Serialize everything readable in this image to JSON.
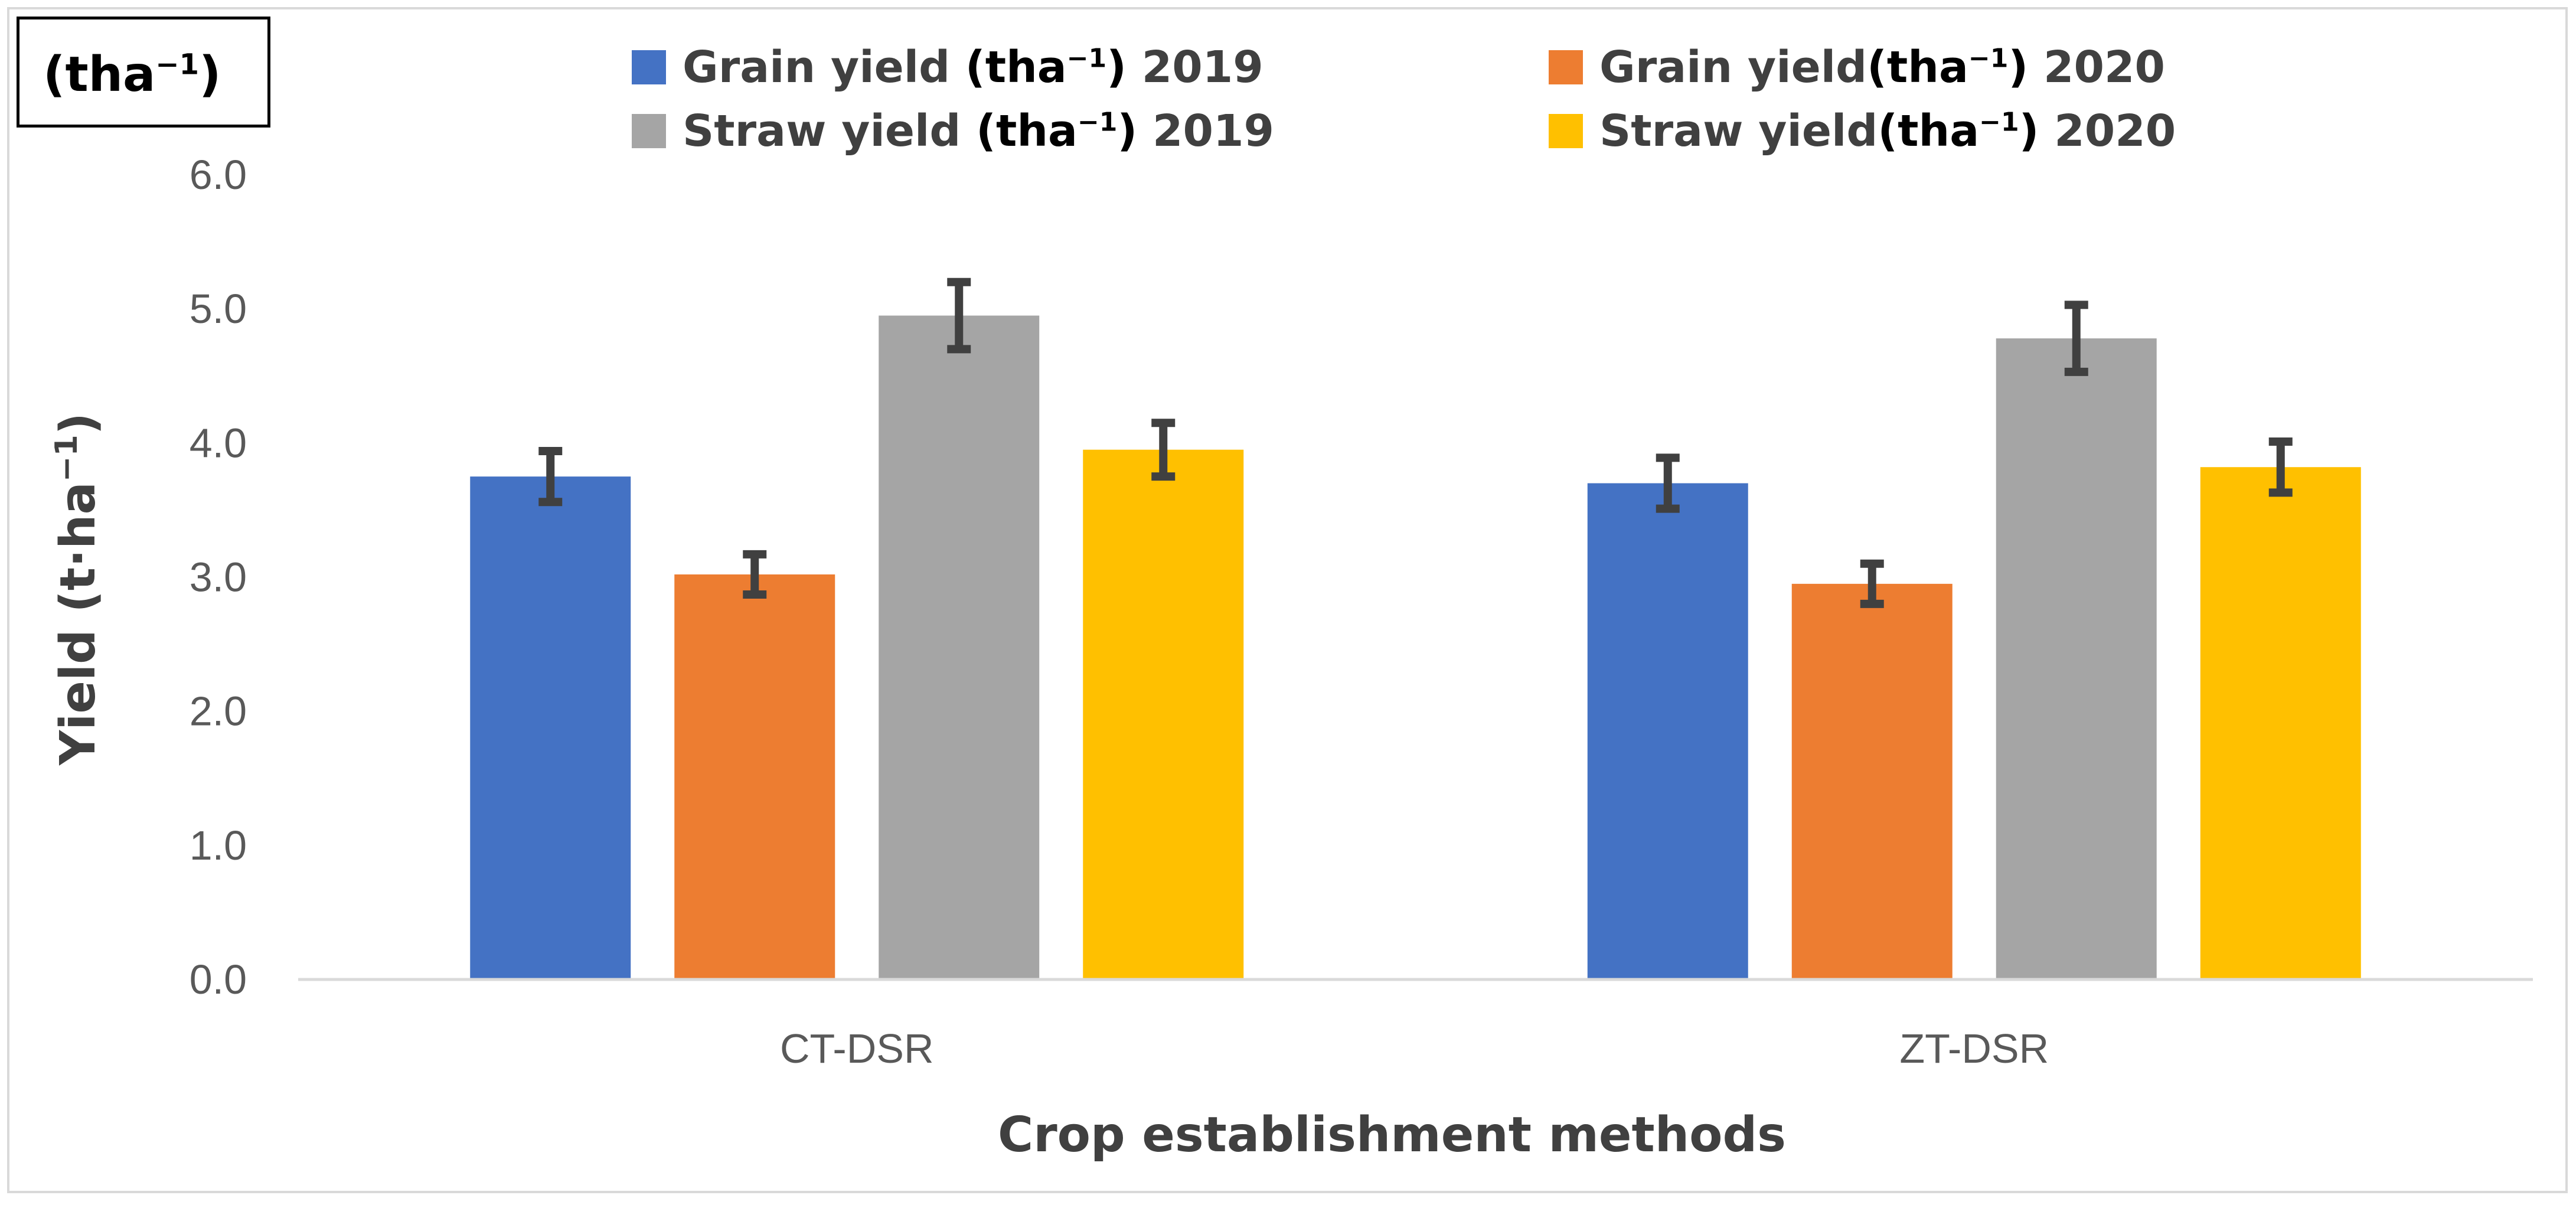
{
  "unit_box": {
    "base": "(tha",
    "exp": "−1",
    "close": ")"
  },
  "legend": [
    {
      "pre": "Grain yield ",
      "unit_base": "(tha",
      "unit_exp": "−1",
      "unit_close": ")",
      "post": " 2019",
      "color": "#4472C4"
    },
    {
      "pre": "Grain yield",
      "unit_base": "(tha",
      "unit_exp": "−1",
      "unit_close": ")",
      "post": "  2020",
      "color": "#ED7D31"
    },
    {
      "pre": "Straw yield ",
      "unit_base": "(tha",
      "unit_exp": "−1",
      "unit_close": ")",
      "post": " 2019",
      "color": "#A5A5A5"
    },
    {
      "pre": "Straw yield",
      "unit_base": "(tha",
      "unit_exp": "−1",
      "unit_close": ")",
      "post": "  2020",
      "color": "#FFC000"
    }
  ],
  "chart_data": {
    "type": "bar",
    "title": "",
    "xlabel": "Crop establishment methods",
    "ylabel_base": "Yield (t·ha",
    "ylabel_exp": "−1",
    "ylabel_close": ")",
    "categories": [
      "CT-DSR",
      "ZT-DSR"
    ],
    "ylim": [
      0,
      6
    ],
    "yticks": [
      "0.0",
      "1.0",
      "2.0",
      "3.0",
      "4.0",
      "5.0",
      "6.0"
    ],
    "grid": false,
    "legend_position": "top",
    "series": [
      {
        "name": "Grain yield (tha−1) 2019",
        "values": [
          3.75,
          3.7
        ],
        "errors": [
          0.19,
          0.19
        ],
        "color": "#4472C4"
      },
      {
        "name": "Grain yield(tha−1) 2020",
        "values": [
          3.02,
          2.95
        ],
        "errors": [
          0.15,
          0.15
        ],
        "color": "#ED7D31"
      },
      {
        "name": "Straw yield (tha−1) 2019",
        "values": [
          4.95,
          4.78
        ],
        "errors": [
          0.25,
          0.25
        ],
        "color": "#A5A5A5"
      },
      {
        "name": "Straw yield(tha−1) 2020",
        "values": [
          3.95,
          3.82
        ],
        "errors": [
          0.2,
          0.19
        ],
        "color": "#FFC000"
      }
    ],
    "error_bar_color": "#404040"
  }
}
